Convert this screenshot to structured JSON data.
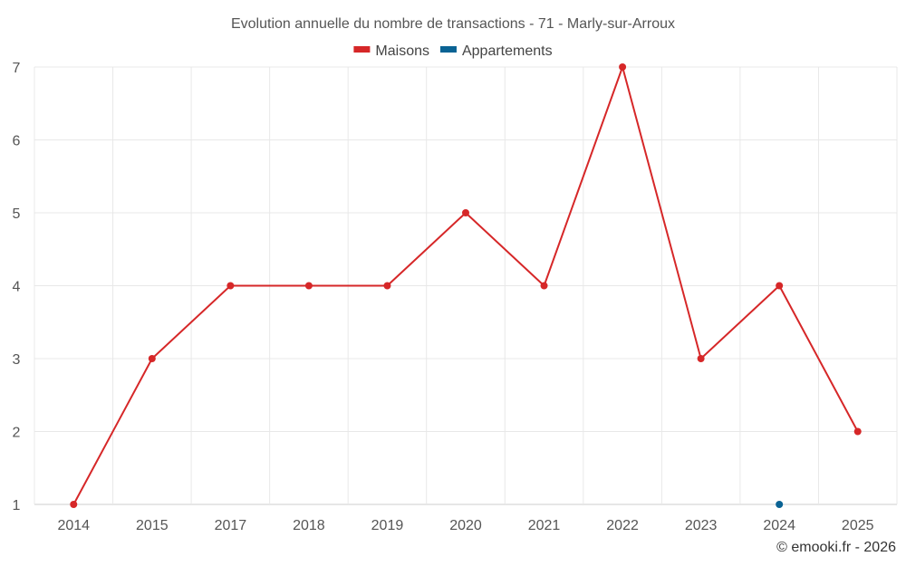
{
  "chart_data": {
    "type": "line",
    "title": "Evolution annuelle du nombre de transactions - 71 - Marly-sur-Arroux",
    "categories": [
      "2014",
      "2015",
      "2017",
      "2018",
      "2019",
      "2020",
      "2021",
      "2022",
      "2023",
      "2024",
      "2025"
    ],
    "series": [
      {
        "name": "Maisons",
        "color": "#d62728",
        "values": [
          1,
          3,
          4,
          4,
          4,
          5,
          4,
          7,
          3,
          4,
          2
        ]
      },
      {
        "name": "Appartements",
        "color": "#0a6394",
        "values": [
          null,
          null,
          null,
          null,
          null,
          null,
          null,
          null,
          null,
          1,
          null
        ]
      }
    ],
    "ylim": [
      1,
      7
    ],
    "yticks": [
      "1",
      "2",
      "3",
      "4",
      "5",
      "6",
      "7"
    ],
    "grid": true,
    "legend_position": "top-center",
    "credit": "© emooki.fr - 2026"
  }
}
